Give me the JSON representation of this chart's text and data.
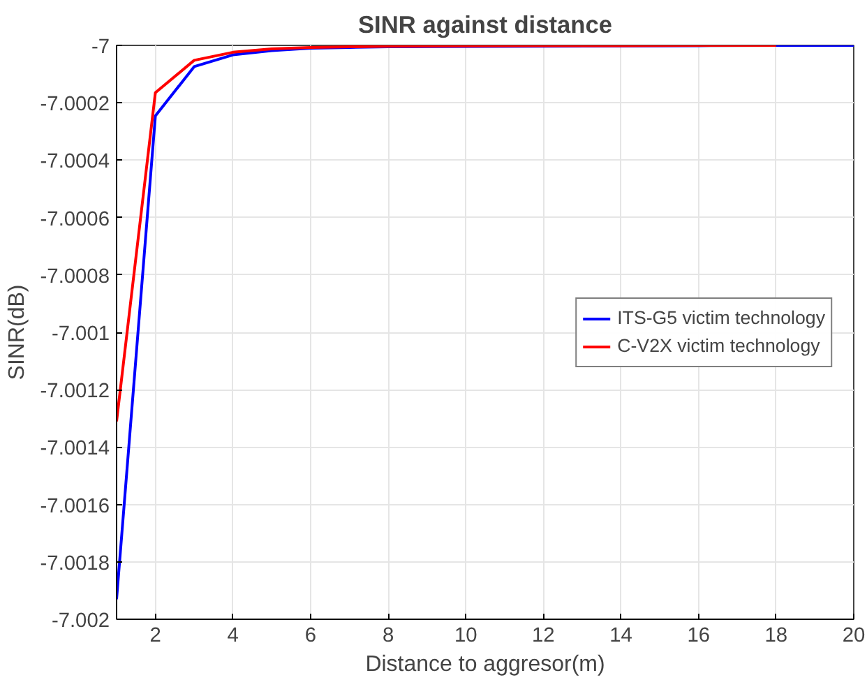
{
  "chart_data": {
    "type": "line",
    "title": "SINR against distance",
    "xlabel": "Distance to aggresor(m)",
    "ylabel": "SINR(dB)",
    "xlim": [
      1,
      20
    ],
    "xticks": [
      2,
      4,
      6,
      8,
      10,
      12,
      14,
      16,
      18,
      20
    ],
    "ylim": [
      -7.002,
      -7
    ],
    "yticks": [
      -7.002,
      -7.0018,
      -7.0016,
      -7.0014,
      -7.0012,
      -7.001,
      -7.0008,
      -7.0006,
      -7.0004,
      -7.0002,
      -7
    ],
    "grid": true,
    "legend": "right",
    "line_style": "solid",
    "series": [
      {
        "name": "ITS-G5 victim technology",
        "color": "#0000ff",
        "x": [
          1,
          2,
          3,
          4,
          5,
          6,
          7,
          8,
          16,
          18,
          20
        ],
        "values": [
          -7.00193,
          -7.000246,
          -7.000074,
          -7.000033,
          -7.000018,
          -7.00001,
          -7.000007,
          -7.000005,
          -7.000001,
          -7.0,
          -7.0
        ]
      },
      {
        "name": "C-V2X victim technology",
        "color": "#ff0000",
        "x": [
          1,
          2,
          3,
          4,
          5,
          6,
          7,
          8,
          10,
          12,
          14,
          16,
          18
        ],
        "values": [
          -7.00131,
          -7.000165,
          -7.000052,
          -7.000024,
          -7.000012,
          -7.000007,
          -7.000005,
          -7.000003,
          -7.000002,
          -7.000001,
          -7.000001,
          -7.0,
          -7.0
        ]
      }
    ]
  }
}
